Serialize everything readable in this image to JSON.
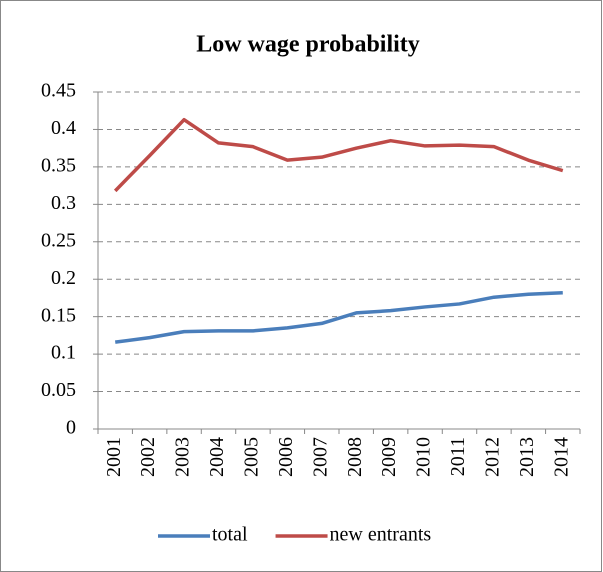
{
  "chart_data": {
    "type": "line",
    "title": "Low wage probability",
    "categories": [
      "2001",
      "2002",
      "2003",
      "2004",
      "2005",
      "2006",
      "2007",
      "2008",
      "2009",
      "2010",
      "2011",
      "2012",
      "2013",
      "2014"
    ],
    "series": [
      {
        "name": "total",
        "color": "#4a7ebb",
        "values": [
          0.116,
          0.122,
          0.13,
          0.131,
          0.131,
          0.135,
          0.141,
          0.155,
          0.158,
          0.163,
          0.167,
          0.176,
          0.18,
          0.182
        ]
      },
      {
        "name": "new entrants",
        "color": "#be4b48",
        "values": [
          0.318,
          0.365,
          0.413,
          0.382,
          0.377,
          0.359,
          0.363,
          0.375,
          0.385,
          0.378,
          0.379,
          0.377,
          0.359,
          0.345
        ]
      }
    ],
    "ylim": [
      0,
      0.45
    ],
    "yticks": [
      0,
      0.05,
      0.1,
      0.15,
      0.2,
      0.25,
      0.3,
      0.35,
      0.4,
      0.45
    ],
    "grid": true,
    "legend": "bottom"
  }
}
